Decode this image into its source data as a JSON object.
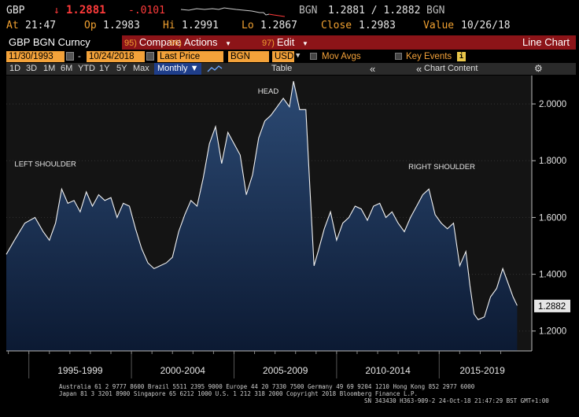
{
  "quote": {
    "ticker": "GBP",
    "arrow": "↓",
    "last": "1.2881",
    "change": "-.0101",
    "currency": "BGN",
    "bid_ask": "1.2881 / 1.2882",
    "currency2": "BGN",
    "time_label": "At",
    "time": "21:47",
    "open_label": "Op",
    "open": "1.2983",
    "high_label": "Hi",
    "high": "1.2991",
    "low_label": "Lo",
    "low": "1.2867",
    "close_label": "Close",
    "close": "1.2983",
    "value_label": "Value",
    "value_date": "10/26/18"
  },
  "titlebar": {
    "security": "GBP BGN Curncy",
    "compare_num": "95)",
    "compare": "Compare",
    "actions_num": "96)",
    "actions": "Actions",
    "edit_num": "97)",
    "edit": "Edit",
    "view": "Line Chart"
  },
  "params": {
    "start_date": "11/30/1993",
    "dash": "-",
    "end_date": "10/24/2018",
    "field": "Last Price",
    "local_ccy": "BGN",
    "ccy": "USD",
    "mov_avgs": "Mov Avgs",
    "key_events": "Key Events"
  },
  "toolbar": {
    "periods": [
      "1D",
      "3D",
      "1M",
      "6M",
      "YTD",
      "1Y",
      "5Y",
      "Max"
    ],
    "frequency": "Monthly ▼",
    "table": "Table",
    "collapse": "«",
    "chart_content": "Chart Content",
    "expand": "«"
  },
  "chart_data": {
    "type": "area",
    "ylim": [
      1.13,
      2.1
    ],
    "yticks": [
      1.2,
      1.4,
      1.6,
      1.8,
      2.0
    ],
    "ytick_labels": [
      "1.2000",
      "1.4000",
      "1.6000",
      "1.8000",
      "2.0000"
    ],
    "last_value_label": "1.2882",
    "x_labels": [
      "1995-1999",
      "2000-2004",
      "2005-2009",
      "2010-2014",
      "2015-2019"
    ],
    "annotations": [
      "LEFT SHOULDER",
      "HEAD",
      "RIGHT SHOULDER"
    ],
    "x": [
      1993.9,
      1994.3,
      1994.8,
      1995.3,
      1995.7,
      1996.0,
      1996.3,
      1996.6,
      1996.9,
      1997.2,
      1997.5,
      1997.8,
      1998.1,
      1998.4,
      1998.7,
      1999.0,
      1999.3,
      1999.6,
      1999.9,
      2000.2,
      2000.5,
      2000.8,
      2001.1,
      2001.4,
      2001.7,
      2002.0,
      2002.3,
      2002.6,
      2002.9,
      2003.2,
      2003.5,
      2003.8,
      2004.1,
      2004.4,
      2004.7,
      2005.0,
      2005.3,
      2005.6,
      2005.9,
      2006.2,
      2006.5,
      2006.8,
      2007.1,
      2007.4,
      2007.7,
      2007.9,
      2008.2,
      2008.5,
      2008.7,
      2008.9,
      2009.1,
      2009.4,
      2009.7,
      2010.0,
      2010.3,
      2010.6,
      2010.9,
      2011.2,
      2011.5,
      2011.8,
      2012.1,
      2012.4,
      2012.7,
      2013.0,
      2013.3,
      2013.6,
      2013.9,
      2014.2,
      2014.5,
      2014.8,
      2015.1,
      2015.4,
      2015.7,
      2016.0,
      2016.3,
      2016.5,
      2016.7,
      2016.9,
      2017.2,
      2017.5,
      2017.8,
      2018.1,
      2018.4,
      2018.6,
      2018.8
    ],
    "y": [
      1.47,
      1.52,
      1.58,
      1.6,
      1.55,
      1.52,
      1.58,
      1.7,
      1.65,
      1.66,
      1.62,
      1.69,
      1.64,
      1.68,
      1.66,
      1.67,
      1.6,
      1.65,
      1.64,
      1.56,
      1.49,
      1.44,
      1.42,
      1.43,
      1.44,
      1.46,
      1.55,
      1.61,
      1.66,
      1.64,
      1.74,
      1.86,
      1.92,
      1.79,
      1.9,
      1.86,
      1.82,
      1.68,
      1.75,
      1.88,
      1.94,
      1.96,
      1.99,
      2.02,
      1.99,
      2.08,
      1.98,
      1.98,
      1.7,
      1.43,
      1.48,
      1.56,
      1.62,
      1.52,
      1.58,
      1.6,
      1.64,
      1.63,
      1.59,
      1.64,
      1.65,
      1.6,
      1.62,
      1.58,
      1.55,
      1.6,
      1.64,
      1.68,
      1.7,
      1.61,
      1.58,
      1.56,
      1.58,
      1.43,
      1.48,
      1.36,
      1.26,
      1.24,
      1.25,
      1.32,
      1.35,
      1.42,
      1.36,
      1.32,
      1.29
    ]
  },
  "footer": {
    "line1": "Australia 61 2 9777 8600 Brazil 5511 2395 9000 Europe 44 20 7330 7500 Germany 49 69 9204 1210 Hong Kong 852 2977 6000",
    "line2": "Japan 81 3 3201 8900 Singapore 65 6212 1000 U.S. 1 212 318 2000 Copyright 2018 Bloomberg Finance L.P.",
    "line3": "SN 343430 H363-909-2 24-Oct-18 21:47:29 BST GMT+1:00"
  },
  "colors": {
    "title_bar": "#8c1418",
    "accent": "#f3a23a",
    "down": "#ff3b3b",
    "area_top": "#27436b",
    "area_bottom": "#0c1a33"
  }
}
